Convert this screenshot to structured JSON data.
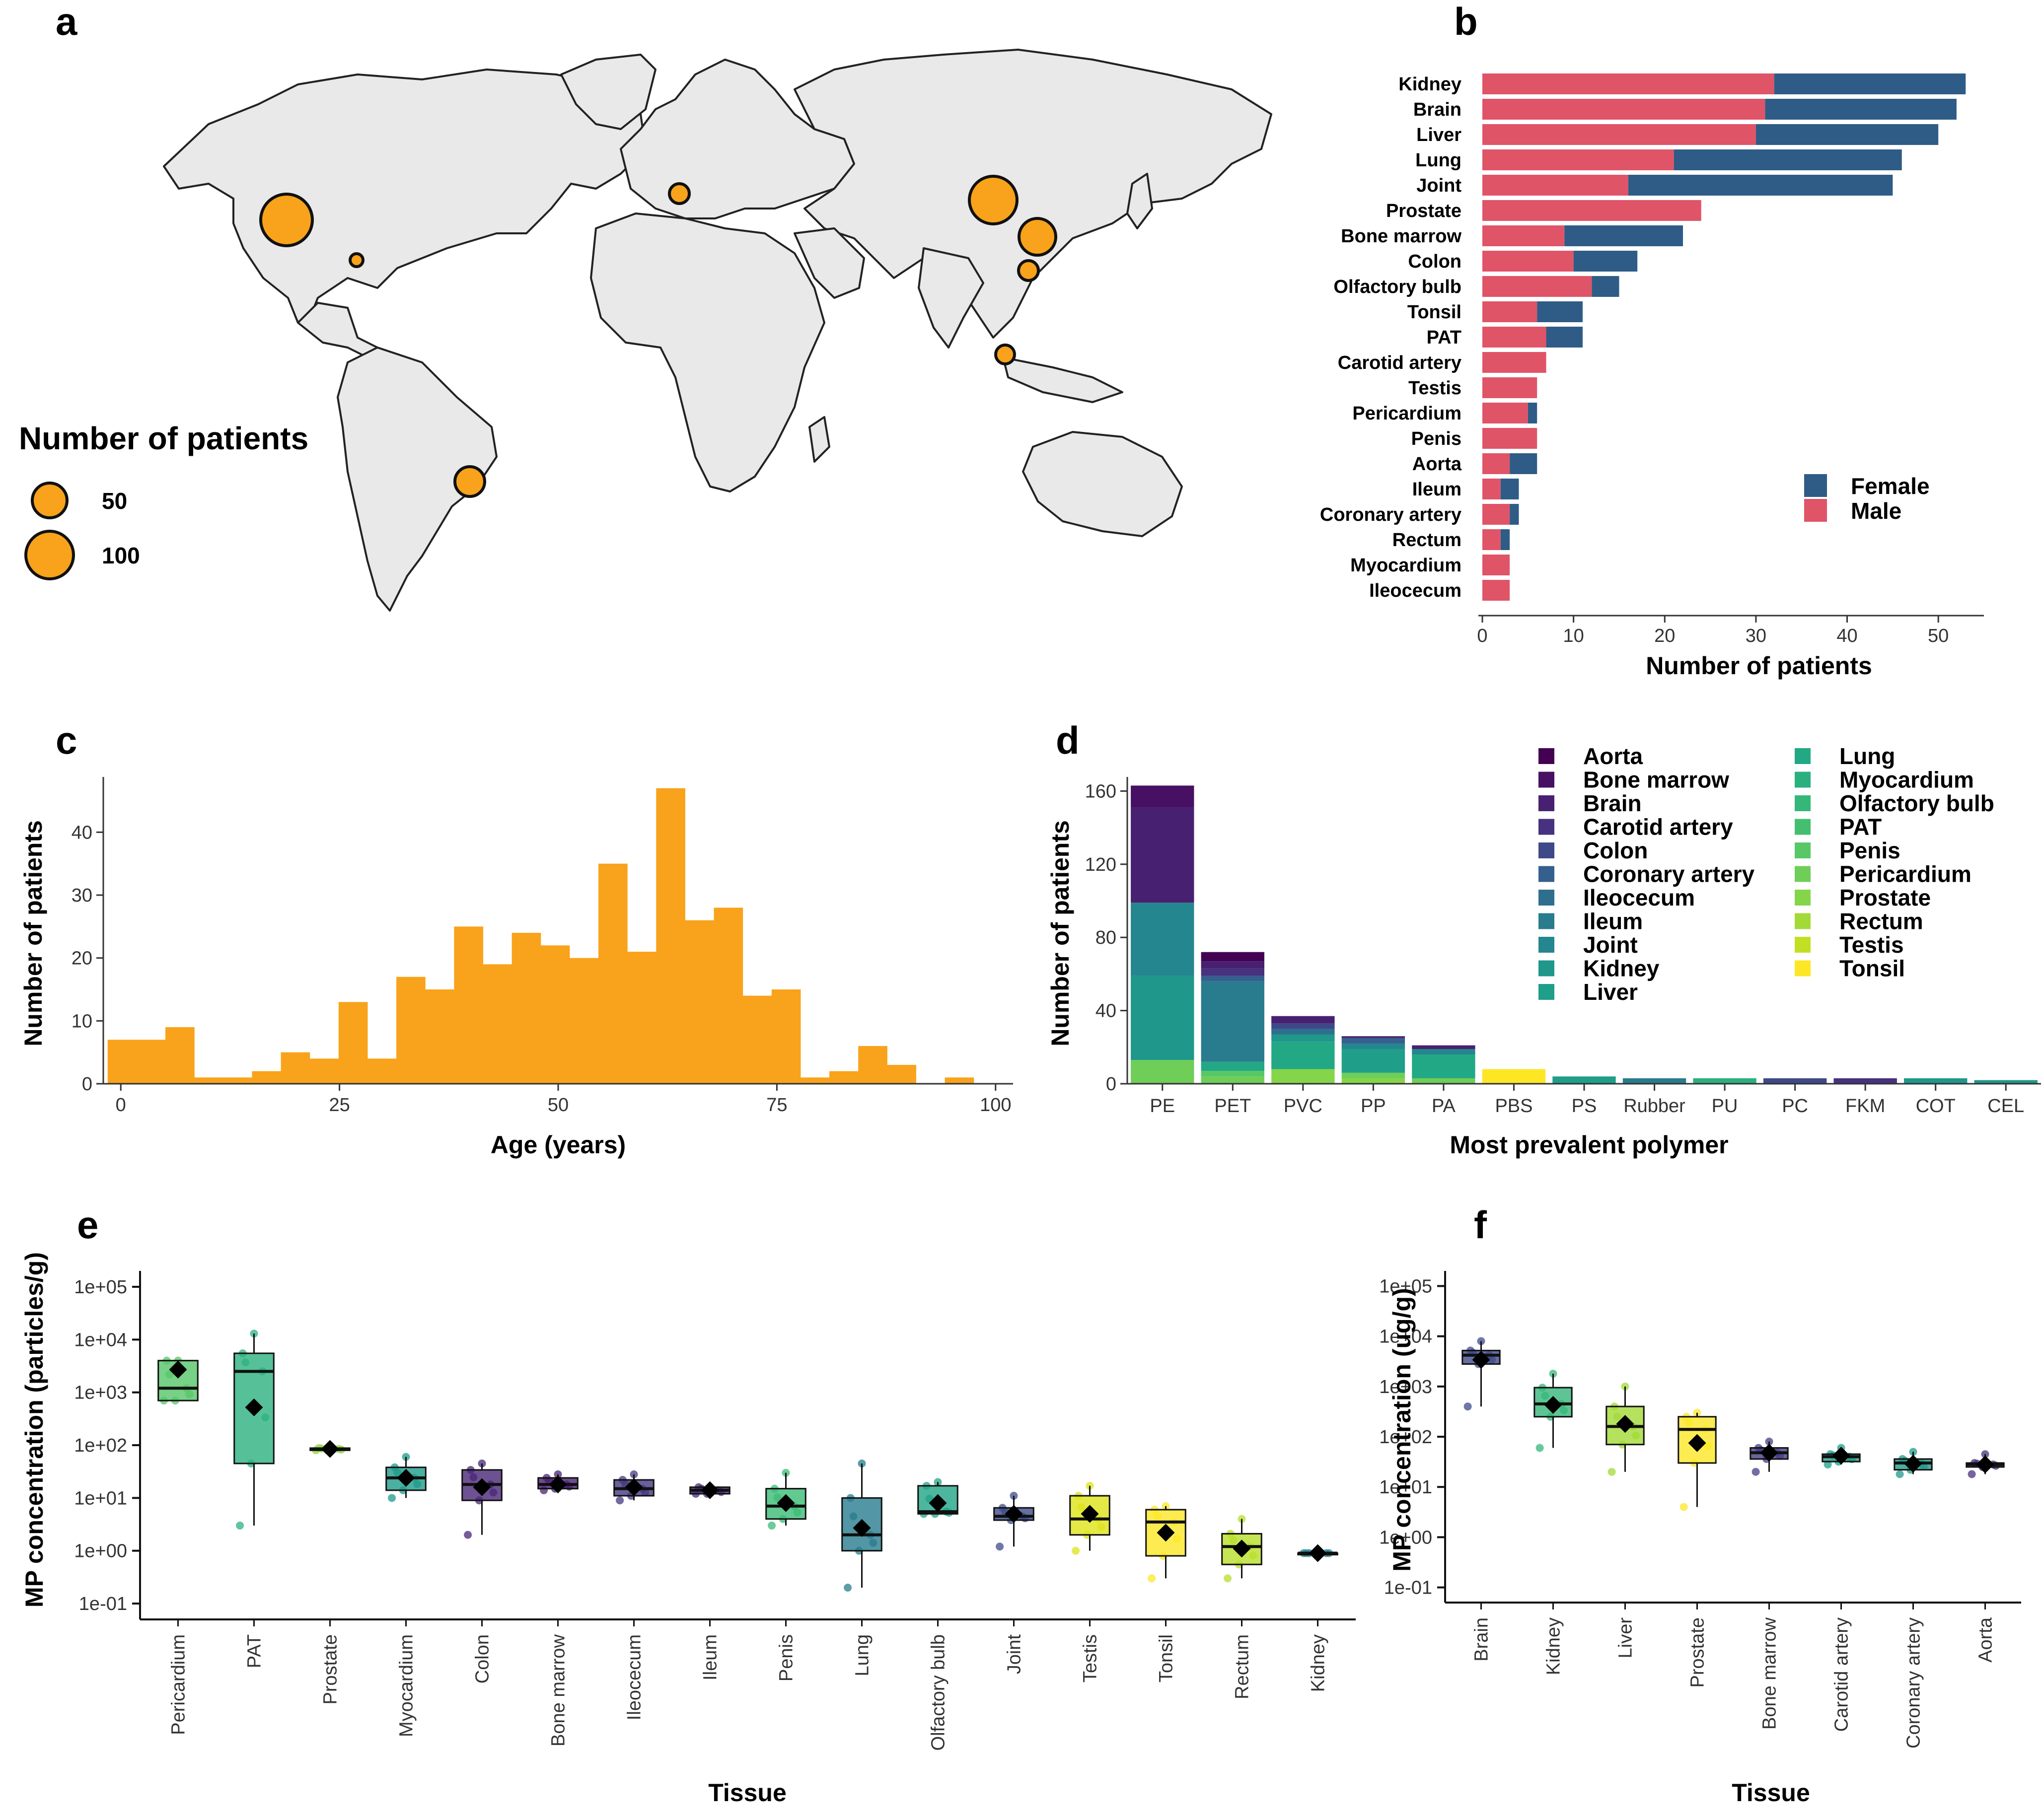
{
  "colors": {
    "female": "#2e5c86",
    "male": "#e05468",
    "orange": "#f8a31b",
    "land": "#e9e9e9",
    "land_border": "#222222",
    "tissue_palette": [
      "#440154",
      "#481467",
      "#482576",
      "#453781",
      "#3f4788",
      "#39558c",
      "#32648e",
      "#2d718e",
      "#287d8e",
      "#238a8d",
      "#1f968b",
      "#20a386",
      "#29af7f",
      "#3dbc74",
      "#56c667",
      "#75d054",
      "#95d840",
      "#bade28",
      "#dde318",
      "#fde725"
    ]
  },
  "panel_labels": {
    "a": "a",
    "b": "b",
    "c": "c",
    "d": "d",
    "e": "e",
    "f": "f"
  },
  "map_panel": {
    "legend_title": "Number of patients",
    "legend_items": [
      {
        "label": "50",
        "value": 50
      },
      {
        "label": "100",
        "value": 100
      }
    ],
    "bubble_icon": "patient-count-bubble"
  },
  "chart_data": [
    {
      "id": "b",
      "type": "bar",
      "orientation": "horizontal",
      "stacked": true,
      "xlabel": "Number of patients",
      "xlim": [
        0,
        55
      ],
      "xticks": [
        0,
        10,
        20,
        30,
        40,
        50
      ],
      "categories": [
        "Kidney",
        "Brain",
        "Liver",
        "Lung",
        "Joint",
        "Prostate",
        "Bone marrow",
        "Colon",
        "Olfactory bulb",
        "Tonsil",
        "PAT",
        "Carotid artery",
        "Testis",
        "Pericardium",
        "Penis",
        "Aorta",
        "Ileum",
        "Coronary artery",
        "Rectum",
        "Myocardium",
        "Ileocecum"
      ],
      "series": [
        {
          "name": "Male",
          "values": [
            32,
            31,
            30,
            21,
            16,
            24,
            9,
            10,
            12,
            6,
            7,
            7,
            6,
            5,
            6,
            3,
            2,
            3,
            2,
            3,
            3
          ]
        },
        {
          "name": "Female",
          "values": [
            21,
            21,
            20,
            25,
            29,
            0,
            13,
            7,
            3,
            5,
            4,
            0,
            0,
            1,
            0,
            3,
            2,
            1,
            1,
            0,
            0
          ]
        }
      ],
      "legend": [
        "Female",
        "Male"
      ],
      "legend_position": "bottom-right"
    },
    {
      "id": "c",
      "type": "bar",
      "subtype": "histogram",
      "xlabel": "Age (years)",
      "ylabel": "Number of patients",
      "xlim": [
        -2,
        102
      ],
      "ylim": [
        0,
        48
      ],
      "xticks": [
        0,
        25,
        50,
        75,
        100
      ],
      "yticks": [
        0,
        10,
        20,
        30,
        40
      ],
      "bin_width": 3.3,
      "bin_start": -1.5,
      "values": [
        7,
        7,
        9,
        1,
        1,
        2,
        5,
        4,
        13,
        4,
        17,
        15,
        25,
        19,
        24,
        22,
        20,
        35,
        21,
        47,
        26,
        28,
        14,
        15,
        1,
        2,
        6,
        3,
        0,
        1
      ]
    },
    {
      "id": "d",
      "type": "bar",
      "stacked": true,
      "xlabel": "Most prevalent polymer",
      "ylabel": "Number of patients",
      "ylim": [
        0,
        165
      ],
      "yticks": [
        0,
        40,
        80,
        120,
        160
      ],
      "categories": [
        "PE",
        "PET",
        "PVC",
        "PP",
        "PA",
        "PBS",
        "PS",
        "Rubber",
        "PU",
        "PC",
        "FKM",
        "COT",
        "CEL"
      ],
      "tissues": [
        "Aorta",
        "Bone marrow",
        "Brain",
        "Carotid artery",
        "Colon",
        "Coronary artery",
        "Ileocecum",
        "Ileum",
        "Joint",
        "Kidney",
        "Liver",
        "Lung",
        "Myocardium",
        "Olfactory bulb",
        "PAT",
        "Penis",
        "Pericardium",
        "Prostate",
        "Rectum",
        "Testis",
        "Tonsil"
      ],
      "tissue_colors": [
        "#440154",
        "#471063",
        "#482071",
        "#46327e",
        "#3e4989",
        "#35608d",
        "#2e6f8e",
        "#297b8e",
        "#24868e",
        "#1f978b",
        "#1f9e89",
        "#22a884",
        "#2ab07f",
        "#35b779",
        "#44bf70",
        "#58c765",
        "#6ece58",
        "#85d54a",
        "#a2da37",
        "#c2df23",
        "#fde725"
      ],
      "stacks": [
        [
          [
            "Pericardium",
            13
          ],
          [
            "Kidney",
            46
          ],
          [
            "Joint",
            40
          ],
          [
            "Brain",
            52
          ],
          [
            "Bone marrow",
            12
          ]
        ],
        [
          [
            "Pericardium",
            4
          ],
          [
            "Penis",
            3
          ],
          [
            "Lung",
            5
          ],
          [
            "Ileum",
            44
          ],
          [
            "Coronary artery",
            3
          ],
          [
            "Carotid artery",
            4
          ],
          [
            "Brain",
            4
          ],
          [
            "Aorta",
            5
          ]
        ],
        [
          [
            "Prostate",
            8
          ],
          [
            "Lung",
            15
          ],
          [
            "Kidney",
            4
          ],
          [
            "Ileocecum",
            3
          ],
          [
            "Colon",
            3
          ],
          [
            "Brain",
            4
          ]
        ],
        [
          [
            "Prostate",
            3
          ],
          [
            "Pericardium",
            3
          ],
          [
            "Liver",
            13
          ],
          [
            "Joint",
            3
          ],
          [
            "Coronary artery",
            3
          ],
          [
            "Brain",
            1
          ]
        ],
        [
          [
            "Pericardium",
            3
          ],
          [
            "Lung",
            13
          ],
          [
            "Joint",
            3
          ],
          [
            "Brain",
            2
          ]
        ],
        [
          [
            "Tonsil",
            8
          ]
        ],
        [
          [
            "Liver",
            4
          ]
        ],
        [
          [
            "Ileum",
            3
          ]
        ],
        [
          [
            "Myocardium",
            3
          ]
        ],
        [
          [
            "Colon",
            3
          ]
        ],
        [
          [
            "Carotid artery",
            3
          ]
        ],
        [
          [
            "Kidney",
            3
          ]
        ],
        [
          [
            "Kidney",
            2
          ]
        ]
      ]
    },
    {
      "id": "e",
      "type": "box",
      "scale": "log10",
      "xlabel": "Tissue",
      "ylabel": "MP concentration (particles/g)",
      "ylim": [
        0.05,
        200000
      ],
      "yticks": [
        "1e-01",
        "1e+00",
        "1e+01",
        "1e+02",
        "1e+03",
        "1e+04",
        "1e+05"
      ],
      "categories": [
        "Pericardium",
        "PAT",
        "Prostate",
        "Myocardium",
        "Colon",
        "Bone marrow",
        "Ileocecum",
        "Ileum",
        "Penis",
        "Lung",
        "Olfactory bulb",
        "Joint",
        "Testis",
        "Tonsil",
        "Rectum",
        "Kidney"
      ],
      "boxes": [
        {
          "q1": 700,
          "median": 1200,
          "q3": 4000,
          "whislo": 700,
          "whishi": 4000,
          "mean": 2700,
          "color": "#55c568"
        },
        {
          "q1": 45,
          "median": 2500,
          "q3": 5500,
          "whislo": 3,
          "whishi": 13000,
          "mean": 520,
          "color": "#2cb17e"
        },
        {
          "q1": 80,
          "median": 85,
          "q3": 88,
          "whislo": 80,
          "whishi": 88,
          "mean": 85,
          "color": "#8fd744"
        },
        {
          "q1": 14,
          "median": 24,
          "q3": 38,
          "whislo": 10,
          "whishi": 60,
          "mean": 24,
          "color": "#1e9b8a"
        },
        {
          "q1": 9,
          "median": 18,
          "q3": 34,
          "whislo": 2,
          "whishi": 45,
          "mean": 16,
          "color": "#482777"
        },
        {
          "q1": 15,
          "median": 18,
          "q3": 24,
          "whislo": 14,
          "whishi": 28,
          "mean": 18,
          "color": "#482173"
        },
        {
          "q1": 11,
          "median": 15,
          "q3": 22,
          "whislo": 9,
          "whishi": 28,
          "mean": 16,
          "color": "#453882"
        },
        {
          "q1": 12,
          "median": 14,
          "q3": 16,
          "whislo": 12,
          "whishi": 16,
          "mean": 14,
          "color": "#472c7a"
        },
        {
          "q1": 4,
          "median": 7,
          "q3": 15,
          "whislo": 3,
          "whishi": 30,
          "mean": 8,
          "color": "#3bbb75"
        },
        {
          "q1": 1,
          "median": 2,
          "q3": 10,
          "whislo": 0.2,
          "whishi": 45,
          "mean": 2.7,
          "color": "#287c8e"
        },
        {
          "q1": 5,
          "median": 5.5,
          "q3": 17,
          "whislo": 5,
          "whishi": 20,
          "mean": 8,
          "color": "#20a486"
        },
        {
          "q1": 3.8,
          "median": 4.5,
          "q3": 6.5,
          "whislo": 1.2,
          "whishi": 11,
          "mean": 5,
          "color": "#3e4c8a"
        },
        {
          "q1": 2,
          "median": 4,
          "q3": 11,
          "whislo": 1,
          "whishi": 17,
          "mean": 5,
          "color": "#dde318"
        },
        {
          "q1": 0.8,
          "median": 3.5,
          "q3": 6,
          "whislo": 0.3,
          "whishi": 7,
          "mean": 2.2,
          "color": "#fde725"
        },
        {
          "q1": 0.55,
          "median": 1.2,
          "q3": 2.1,
          "whislo": 0.3,
          "whishi": 4,
          "mean": 1.1,
          "color": "#b8de29"
        },
        {
          "q1": 0.9,
          "median": 0.9,
          "q3": 0.9,
          "whislo": 0.9,
          "whishi": 0.9,
          "mean": 0.9,
          "color": "#25848e"
        }
      ]
    },
    {
      "id": "f",
      "type": "box",
      "scale": "log10",
      "xlabel": "Tissue",
      "ylabel": "MP concentration (ug/g)",
      "ylim": [
        0.05,
        200000
      ],
      "yticks": [
        "1e-01",
        "1e+00",
        "1e+01",
        "1e+02",
        "1e+03",
        "1e+04",
        "1e+05"
      ],
      "categories": [
        "Brain",
        "Kidney",
        "Liver",
        "Prostate",
        "Bone marrow",
        "Carotid artery",
        "Coronary artery",
        "Aorta"
      ],
      "boxes": [
        {
          "q1": 2800,
          "median": 4200,
          "q3": 5200,
          "whislo": 400,
          "whishi": 8000,
          "mean": 3400,
          "color": "#3e4a89"
        },
        {
          "q1": 250,
          "median": 450,
          "q3": 950,
          "whislo": 60,
          "whishi": 1800,
          "mean": 430,
          "color": "#35b779"
        },
        {
          "q1": 70,
          "median": 160,
          "q3": 400,
          "whislo": 20,
          "whishi": 1000,
          "mean": 180,
          "color": "#a2da37"
        },
        {
          "q1": 30,
          "median": 140,
          "q3": 250,
          "whislo": 4,
          "whishi": 300,
          "mean": 75,
          "color": "#fde725"
        },
        {
          "q1": 36,
          "median": 48,
          "q3": 60,
          "whislo": 20,
          "whishi": 80,
          "mean": 48,
          "color": "#433e85"
        },
        {
          "q1": 32,
          "median": 40,
          "q3": 45,
          "whislo": 28,
          "whishi": 60,
          "mean": 42,
          "color": "#1f9e89"
        },
        {
          "q1": 22,
          "median": 30,
          "q3": 36,
          "whislo": 18,
          "whishi": 50,
          "mean": 29,
          "color": "#1f988b"
        },
        {
          "q1": 25,
          "median": 28,
          "q3": 30,
          "whislo": 18,
          "whishi": 45,
          "mean": 28,
          "color": "#46327e"
        }
      ]
    }
  ]
}
